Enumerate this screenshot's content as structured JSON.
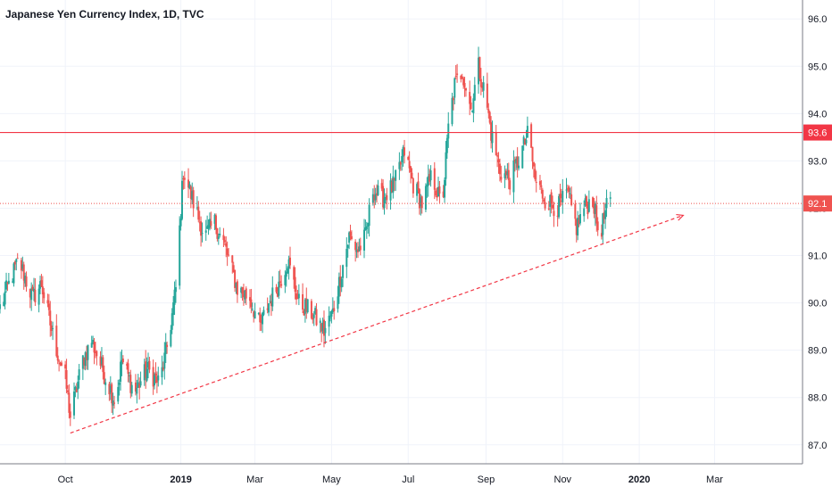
{
  "chart_data": {
    "type": "candlestick",
    "title": "Japanese Yen Currency Index, 1D, TVC",
    "y_axis": {
      "ticks": [
        "87.0",
        "88.0",
        "89.0",
        "90.0",
        "91.0",
        "92.0",
        "93.0",
        "94.0",
        "95.0",
        "96.0"
      ],
      "range": [
        86.6,
        96.4
      ],
      "position": "right"
    },
    "x_axis": {
      "range": [
        "2018-08-10",
        "2020-05-10"
      ],
      "ticks": [
        {
          "label": "Oct",
          "date": "2018-10-01"
        },
        {
          "label": "2019",
          "date": "2019-01-01"
        },
        {
          "label": "Mar",
          "date": "2019-03-01"
        },
        {
          "label": "May",
          "date": "2019-05-01"
        },
        {
          "label": "Jul",
          "date": "2019-07-01"
        },
        {
          "label": "Sep",
          "date": "2019-09-01"
        },
        {
          "label": "Nov",
          "date": "2019-11-01"
        },
        {
          "label": "2020",
          "date": "2020-01-01"
        },
        {
          "label": "Mar",
          "date": "2020-03-01"
        }
      ]
    },
    "grid": true,
    "colors": {
      "up": "#26a69a",
      "down": "#ef5350",
      "resistance": "#f23645",
      "last_price": "#ef5350",
      "trendline": "#f23645",
      "grid": "#f0f3fa",
      "axis_text": "#131722"
    },
    "price_path": [
      [
        "2018-08-10",
        89.9
      ],
      [
        "2018-08-20",
        90.6
      ],
      [
        "2018-08-25",
        90.9
      ],
      [
        "2018-09-05",
        90.1
      ],
      [
        "2018-09-12",
        90.4
      ],
      [
        "2018-09-22",
        89.2
      ],
      [
        "2018-10-01",
        88.4
      ],
      [
        "2018-10-05",
        87.6
      ],
      [
        "2018-10-15",
        88.8
      ],
      [
        "2018-10-22",
        89.2
      ],
      [
        "2018-11-01",
        88.5
      ],
      [
        "2018-11-10",
        87.9
      ],
      [
        "2018-11-15",
        88.8
      ],
      [
        "2018-11-25",
        88.1
      ],
      [
        "2018-12-05",
        88.6
      ],
      [
        "2018-12-15",
        88.3
      ],
      [
        "2018-12-22",
        89.2
      ],
      [
        "2018-12-28",
        90.3
      ],
      [
        "2019-01-03",
        92.8
      ],
      [
        "2019-01-10",
        92.2
      ],
      [
        "2019-01-20",
        91.4
      ],
      [
        "2019-01-28",
        91.7
      ],
      [
        "2019-02-05",
        91.2
      ],
      [
        "2019-02-15",
        90.3
      ],
      [
        "2019-02-25",
        90.1
      ],
      [
        "2019-03-05",
        89.5
      ],
      [
        "2019-03-12",
        90.0
      ],
      [
        "2019-03-20",
        90.4
      ],
      [
        "2019-03-27",
        90.9
      ],
      [
        "2019-04-05",
        90.0
      ],
      [
        "2019-04-15",
        89.8
      ],
      [
        "2019-04-25",
        89.4
      ],
      [
        "2019-05-02",
        89.8
      ],
      [
        "2019-05-10",
        90.8
      ],
      [
        "2019-05-15",
        91.4
      ],
      [
        "2019-05-22",
        91.1
      ],
      [
        "2019-05-28",
        91.4
      ],
      [
        "2019-06-03",
        92.4
      ],
      [
        "2019-06-10",
        92.2
      ],
      [
        "2019-06-20",
        92.5
      ],
      [
        "2019-06-28",
        93.2
      ],
      [
        "2019-07-05",
        92.5
      ],
      [
        "2019-07-12",
        92.1
      ],
      [
        "2019-07-20",
        92.7
      ],
      [
        "2019-07-28",
        92.0
      ],
      [
        "2019-08-02",
        93.7
      ],
      [
        "2019-08-07",
        94.6
      ],
      [
        "2019-08-13",
        94.9
      ],
      [
        "2019-08-20",
        94.1
      ],
      [
        "2019-08-26",
        95.0
      ],
      [
        "2019-09-01",
        94.3
      ],
      [
        "2019-09-05",
        93.6
      ],
      [
        "2019-09-12",
        92.8
      ],
      [
        "2019-09-20",
        92.6
      ],
      [
        "2019-09-28",
        93.1
      ],
      [
        "2019-10-05",
        93.6
      ],
      [
        "2019-10-10",
        92.6
      ],
      [
        "2019-10-18",
        92.2
      ],
      [
        "2019-10-28",
        92.0
      ],
      [
        "2019-11-05",
        92.3
      ],
      [
        "2019-11-12",
        91.6
      ],
      [
        "2019-11-18",
        92.0
      ],
      [
        "2019-11-25",
        92.2
      ],
      [
        "2019-11-30",
        91.4
      ],
      [
        "2019-12-06",
        92.0
      ],
      [
        "2019-12-09",
        92.1
      ]
    ],
    "horizontal_lines": [
      {
        "value": 93.6,
        "label": "93.6",
        "style": "solid",
        "role": "resistance"
      },
      {
        "value": 92.1,
        "label": "92.1",
        "style": "dotted",
        "role": "last-price"
      }
    ],
    "trendline": {
      "start": {
        "date": "2018-10-05",
        "value": 87.25
      },
      "end": {
        "date": "2020-02-05",
        "value": 91.85
      },
      "style": "dashed",
      "arrow": true
    }
  }
}
